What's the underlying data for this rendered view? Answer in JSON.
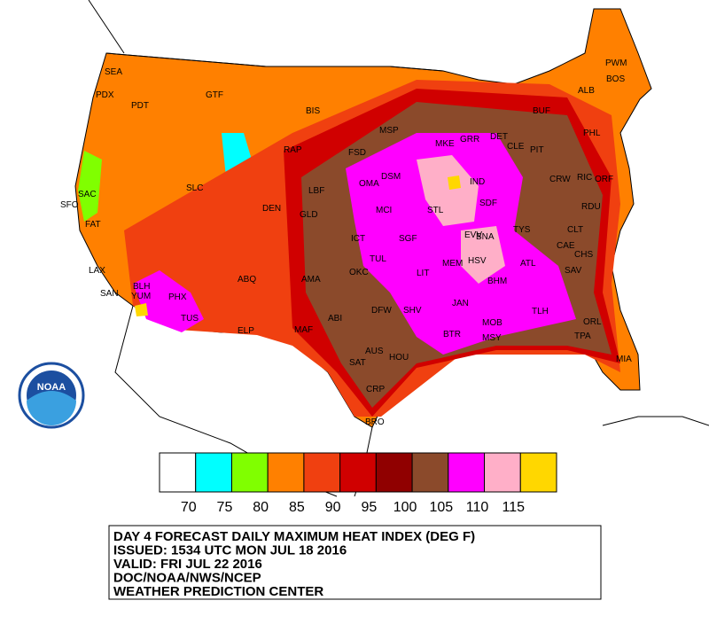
{
  "map": {
    "cities": [
      "SEA",
      "PDX",
      "PDT",
      "GTF",
      "BIS",
      "MSP",
      "RAP",
      "FSD",
      "SLC",
      "SAC",
      "SFO",
      "FAT",
      "DEN",
      "LBF",
      "GLD",
      "OMA",
      "DSM",
      "MKE",
      "GRR",
      "DET",
      "CLE",
      "PIT",
      "IND",
      "SDF",
      "STL",
      "MCI",
      "ICT",
      "TUL",
      "OKC",
      "SGF",
      "AMA",
      "ABQ",
      "PHX",
      "TUS",
      "YUM",
      "BLH",
      "LAX",
      "SAN",
      "ELP",
      "MAF",
      "ABI",
      "DFW",
      "SHV",
      "LIT",
      "MEM",
      "BNA",
      "TYS",
      "HSV",
      "BHM",
      "ATL",
      "JAN",
      "AUS",
      "SAT",
      "HOU",
      "CRP",
      "BRO",
      "BTR",
      "MSY",
      "MOB",
      "TLH",
      "ORL",
      "TPA",
      "MIA",
      "SAV",
      "CHS",
      "CAE",
      "CLT",
      "RDU",
      "RIC",
      "ORF",
      "CRW",
      "PHL",
      "BOS",
      "ALB",
      "BUF",
      "PWM",
      "EVV"
    ],
    "logo": "NOAA"
  },
  "legend": {
    "colors": [
      "#ffffff",
      "#00ffff",
      "#80ff00",
      "#ff8000",
      "#f04010",
      "#d00000",
      "#900000",
      "#8b4a2b",
      "#ff00ff",
      "#ffafc8",
      "#ffd700"
    ],
    "labels": [
      70,
      75,
      80,
      85,
      90,
      95,
      100,
      105,
      110,
      115
    ]
  },
  "caption": {
    "lines": [
      "DAY 4 FORECAST DAILY MAXIMUM HEAT INDEX (DEG F)",
      "ISSUED: 1534 UTC MON JUL 18 2016",
      "VALID: FRI JUL 22 2016",
      "DOC/NOAA/NWS/NCEP",
      "WEATHER PREDICTION CENTER"
    ]
  }
}
